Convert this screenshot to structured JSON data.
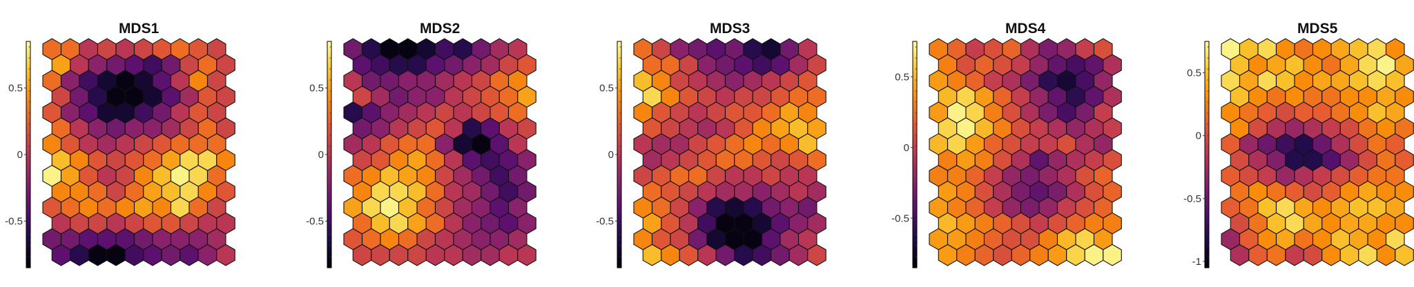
{
  "chart_data": [
    {
      "type": "heatmap",
      "title": "MDS1",
      "grid": "hexagonal",
      "rows": 14,
      "cols": 10,
      "colormap": "inferno",
      "colorbar": {
        "vmin": -0.85,
        "vmax": 0.85,
        "ticks": [
          0.5,
          0,
          -0.5
        ],
        "tick_labels": [
          "0.5",
          "0",
          "-0.5"
        ]
      },
      "values": [
        [
          0.3,
          0.3,
          0.0,
          0.1,
          0.0,
          0.1,
          0.2,
          0.3,
          0.2,
          0.1
        ],
        [
          0.5,
          0.0,
          -0.2,
          -0.3,
          -0.4,
          -0.5,
          -0.3,
          0.1,
          0.3,
          0.1
        ],
        [
          0.3,
          -0.2,
          -0.5,
          -0.7,
          -0.8,
          -0.7,
          -0.4,
          0.0,
          0.4,
          0.1
        ],
        [
          0.1,
          -0.3,
          -0.6,
          -0.8,
          -0.8,
          -0.7,
          -0.4,
          -0.1,
          0.2,
          0.1
        ],
        [
          0.2,
          -0.2,
          -0.4,
          -0.7,
          -0.7,
          -0.5,
          -0.3,
          0.0,
          0.2,
          0.1
        ],
        [
          0.3,
          0.0,
          -0.2,
          -0.3,
          -0.2,
          -0.2,
          -0.1,
          0.1,
          0.3,
          0.1
        ],
        [
          0.4,
          0.2,
          0.0,
          -0.1,
          0.0,
          0.1,
          0.2,
          0.3,
          0.3,
          0.3
        ],
        [
          0.6,
          0.4,
          0.2,
          0.1,
          0.2,
          0.3,
          0.5,
          0.7,
          0.7,
          0.4
        ],
        [
          0.8,
          0.5,
          0.2,
          0.0,
          0.1,
          0.4,
          0.6,
          0.8,
          0.7,
          0.3
        ],
        [
          0.4,
          0.4,
          0.3,
          0.1,
          0.3,
          0.5,
          0.6,
          0.7,
          0.4,
          0.2
        ],
        [
          0.2,
          0.3,
          0.4,
          0.3,
          0.4,
          0.5,
          0.4,
          0.7,
          0.3,
          0.1
        ],
        [
          0.0,
          0.1,
          0.1,
          0.0,
          0.1,
          0.2,
          0.2,
          0.1,
          0.0,
          0.0
        ],
        [
          -0.3,
          -0.3,
          -0.4,
          -0.4,
          -0.4,
          -0.3,
          -0.2,
          -0.2,
          -0.2,
          -0.1
        ],
        [
          -0.4,
          -0.6,
          -0.8,
          -0.8,
          -0.5,
          -0.4,
          -0.3,
          -0.4,
          -0.2,
          0.0
        ]
      ]
    },
    {
      "type": "heatmap",
      "title": "MDS2",
      "grid": "hexagonal",
      "rows": 14,
      "cols": 10,
      "colormap": "inferno",
      "colorbar": {
        "vmin": -0.85,
        "vmax": 0.85,
        "ticks": [
          0.5,
          0,
          -0.5
        ],
        "tick_labels": [
          "0.5",
          "0",
          "-0.5"
        ]
      },
      "values": [
        [
          -0.3,
          -0.6,
          -0.8,
          -0.8,
          -0.7,
          -0.5,
          -0.6,
          -0.3,
          -0.1,
          0.0
        ],
        [
          -0.4,
          -0.5,
          -0.6,
          -0.6,
          -0.4,
          -0.3,
          -0.2,
          -0.1,
          0.1,
          0.2
        ],
        [
          0.0,
          -0.3,
          -0.3,
          -0.2,
          -0.2,
          -0.1,
          0.0,
          0.1,
          0.3,
          0.4
        ],
        [
          0.1,
          -0.1,
          -0.3,
          -0.2,
          -0.2,
          0.0,
          0.1,
          0.2,
          0.3,
          0.5
        ],
        [
          -0.6,
          -0.4,
          -0.2,
          -0.1,
          0.0,
          0.1,
          0.0,
          0.1,
          0.2,
          0.3
        ],
        [
          -0.3,
          -0.2,
          0.0,
          0.1,
          0.2,
          0.0,
          -0.6,
          -0.4,
          0.0,
          0.1
        ],
        [
          -0.1,
          0.0,
          0.2,
          0.3,
          0.3,
          -0.2,
          -0.7,
          -0.8,
          -0.4,
          0.0
        ],
        [
          0.1,
          0.2,
          0.4,
          0.5,
          0.3,
          0.0,
          -0.4,
          -0.5,
          -0.4,
          -0.2
        ],
        [
          0.3,
          0.4,
          0.6,
          0.5,
          0.4,
          0.1,
          -0.1,
          -0.3,
          -0.5,
          -0.3
        ],
        [
          0.4,
          0.7,
          0.7,
          0.6,
          0.3,
          0.0,
          -0.1,
          -0.3,
          -0.5,
          -0.3
        ],
        [
          0.5,
          0.7,
          0.8,
          0.6,
          0.3,
          0.1,
          -0.1,
          -0.2,
          -0.4,
          -0.2
        ],
        [
          0.3,
          0.6,
          0.7,
          0.5,
          0.3,
          0.0,
          -0.2,
          -0.3,
          -0.4,
          -0.2
        ],
        [
          0.2,
          0.3,
          0.4,
          0.3,
          0.1,
          0.0,
          -0.1,
          -0.2,
          -0.2,
          -0.1
        ],
        [
          0.1,
          0.1,
          0.1,
          0.1,
          0.0,
          0.0,
          -0.1,
          -0.1,
          0.0,
          0.0
        ]
      ]
    },
    {
      "type": "heatmap",
      "title": "MDS3",
      "grid": "hexagonal",
      "rows": 14,
      "cols": 10,
      "colormap": "inferno",
      "colorbar": {
        "vmin": -0.85,
        "vmax": 0.85,
        "ticks": [
          0.5,
          0,
          -0.5
        ],
        "tick_labels": [
          "0.5",
          "0",
          "-0.5"
        ]
      },
      "values": [
        [
          0.3,
          0.1,
          -0.2,
          -0.3,
          -0.4,
          -0.3,
          -0.6,
          -0.7,
          -0.3,
          0.0
        ],
        [
          0.3,
          0.3,
          0.1,
          -0.2,
          -0.3,
          -0.4,
          -0.5,
          -0.4,
          -0.1,
          0.1
        ],
        [
          0.6,
          0.4,
          0.1,
          0.0,
          -0.1,
          -0.2,
          -0.1,
          0.0,
          0.1,
          0.2
        ],
        [
          0.7,
          0.4,
          0.2,
          0.1,
          0.0,
          0.1,
          0.1,
          0.2,
          0.3,
          0.3
        ],
        [
          0.4,
          0.2,
          0.1,
          0.0,
          0.1,
          0.2,
          0.2,
          0.3,
          0.5,
          0.4
        ],
        [
          0.2,
          0.1,
          0.0,
          -0.1,
          0.0,
          0.2,
          0.4,
          0.5,
          0.6,
          0.5
        ],
        [
          0.0,
          -0.1,
          -0.1,
          0.1,
          0.2,
          0.3,
          0.4,
          0.3,
          0.4,
          0.6
        ],
        [
          -0.1,
          0.0,
          0.1,
          0.2,
          0.3,
          0.3,
          0.2,
          0.1,
          0.2,
          0.3
        ],
        [
          0.1,
          0.2,
          0.3,
          0.3,
          0.1,
          0.0,
          0.0,
          0.1,
          0.0,
          0.0
        ],
        [
          0.3,
          0.2,
          0.1,
          0.0,
          -0.1,
          -0.1,
          -0.2,
          -0.1,
          0.0,
          -0.1
        ],
        [
          0.4,
          0.3,
          0.1,
          -0.2,
          -0.6,
          -0.7,
          -0.6,
          -0.3,
          -0.2,
          -0.3
        ],
        [
          0.5,
          0.2,
          0.0,
          -0.5,
          -0.8,
          -0.8,
          -0.7,
          -0.4,
          -0.2,
          -0.1
        ],
        [
          0.4,
          0.2,
          0.1,
          -0.3,
          -0.7,
          -0.8,
          -0.8,
          -0.4,
          -0.1,
          0.0
        ],
        [
          0.6,
          0.4,
          0.2,
          0.0,
          -0.3,
          -0.6,
          -0.5,
          -0.3,
          -0.1,
          0.1
        ]
      ]
    },
    {
      "type": "heatmap",
      "title": "MDS4",
      "grid": "hexagonal",
      "rows": 14,
      "cols": 10,
      "colormap": "inferno",
      "colorbar": {
        "vmin": -0.85,
        "vmax": 0.75,
        "ticks": [
          0.5,
          0,
          -0.5
        ],
        "tick_labels": [
          "0.5",
          "0",
          "-0.5"
        ]
      },
      "values": [
        [
          0.3,
          0.2,
          0.0,
          0.1,
          0.2,
          -0.1,
          -0.3,
          -0.2,
          0.0,
          0.1
        ],
        [
          0.3,
          0.1,
          0.2,
          0.1,
          0.0,
          -0.2,
          -0.4,
          -0.5,
          -0.4,
          -0.1
        ],
        [
          0.4,
          0.3,
          0.2,
          0.0,
          -0.1,
          -0.3,
          -0.6,
          -0.7,
          -0.5,
          -0.2
        ],
        [
          0.5,
          0.6,
          0.4,
          0.2,
          0.0,
          -0.2,
          -0.4,
          -0.6,
          -0.4,
          -0.1
        ],
        [
          0.4,
          0.7,
          0.6,
          0.3,
          0.1,
          -0.1,
          -0.3,
          -0.5,
          -0.3,
          0.0
        ],
        [
          0.6,
          0.7,
          0.5,
          0.3,
          0.1,
          0.0,
          -0.1,
          -0.2,
          -0.1,
          0.0
        ],
        [
          0.5,
          0.6,
          0.4,
          0.2,
          0.1,
          0.0,
          0.0,
          0.1,
          -0.1,
          -0.2
        ],
        [
          0.3,
          0.4,
          0.3,
          0.1,
          -0.1,
          -0.4,
          -0.2,
          -0.1,
          0.0,
          0.1
        ],
        [
          0.3,
          0.3,
          0.2,
          0.0,
          -0.2,
          -0.3,
          -0.2,
          -0.1,
          0.1,
          0.2
        ],
        [
          0.4,
          0.3,
          0.1,
          -0.1,
          -0.3,
          -0.4,
          -0.3,
          -0.1,
          0.1,
          0.2
        ],
        [
          0.4,
          0.3,
          0.2,
          0.0,
          -0.2,
          -0.3,
          -0.2,
          0.0,
          0.1,
          0.2
        ],
        [
          0.5,
          0.4,
          0.3,
          0.2,
          0.1,
          0.0,
          0.1,
          0.2,
          0.3,
          0.3
        ],
        [
          0.4,
          0.4,
          0.3,
          0.2,
          0.1,
          0.1,
          0.3,
          0.5,
          0.6,
          0.4
        ],
        [
          0.4,
          0.3,
          0.2,
          0.1,
          0.2,
          0.3,
          0.4,
          0.6,
          0.7,
          0.7
        ]
      ]
    },
    {
      "type": "heatmap",
      "title": "MDS5",
      "grid": "hexagonal",
      "rows": 14,
      "cols": 10,
      "colormap": "inferno",
      "colorbar": {
        "vmin": -1.05,
        "vmax": 0.75,
        "ticks": [
          0.5,
          0,
          -0.5,
          -1
        ],
        "tick_labels": [
          "0.5",
          "0",
          "-0.5",
          "-1"
        ]
      },
      "values": [
        [
          0.7,
          0.5,
          0.6,
          0.3,
          0.2,
          0.3,
          0.4,
          0.5,
          0.6,
          0.3
        ],
        [
          0.5,
          0.3,
          0.4,
          0.5,
          0.3,
          0.2,
          0.4,
          0.6,
          0.7,
          0.4
        ],
        [
          0.6,
          0.4,
          0.6,
          0.5,
          0.3,
          0.4,
          0.4,
          0.5,
          0.6,
          0.5
        ],
        [
          0.5,
          0.3,
          0.2,
          0.3,
          0.2,
          0.2,
          0.3,
          0.3,
          0.4,
          0.3
        ],
        [
          0.3,
          0.2,
          0.1,
          0.0,
          0.1,
          0.1,
          0.2,
          0.3,
          0.5,
          0.4
        ],
        [
          0.3,
          0.0,
          -0.2,
          -0.3,
          -0.2,
          -0.1,
          0.0,
          0.2,
          0.3,
          0.2
        ],
        [
          0.1,
          -0.3,
          -0.5,
          -0.7,
          -0.8,
          -0.5,
          -0.2,
          0.0,
          0.2,
          0.1
        ],
        [
          0.0,
          -0.2,
          -0.4,
          -0.8,
          -0.8,
          -0.6,
          -0.3,
          0.0,
          0.2,
          0.1
        ],
        [
          0.1,
          0.0,
          -0.1,
          -0.3,
          -0.2,
          -0.1,
          0.0,
          0.1,
          0.2,
          0.2
        ],
        [
          0.2,
          0.3,
          0.2,
          0.1,
          0.0,
          0.1,
          0.3,
          0.4,
          0.3,
          0.3
        ],
        [
          0.1,
          0.2,
          0.5,
          0.6,
          0.4,
          0.3,
          0.4,
          0.5,
          0.5,
          0.4
        ],
        [
          0.0,
          0.2,
          0.5,
          0.6,
          0.4,
          0.3,
          0.4,
          0.4,
          0.3,
          0.3
        ],
        [
          -0.3,
          0.1,
          0.3,
          0.4,
          0.2,
          0.3,
          0.5,
          0.4,
          0.3,
          0.6
        ],
        [
          -0.2,
          0.1,
          0.2,
          -0.1,
          0.0,
          0.3,
          0.5,
          0.6,
          0.3,
          0.5
        ]
      ]
    }
  ]
}
